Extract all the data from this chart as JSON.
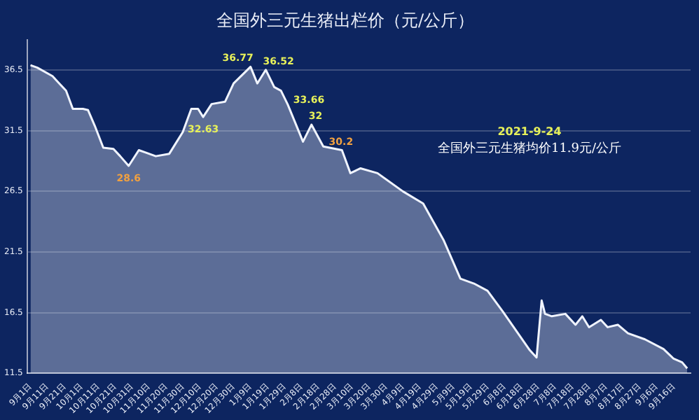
{
  "chart_data": {
    "type": "area",
    "title": "全国外三元生猪出栏价（元/公斤）",
    "x": [
      "2020-09-01",
      "2020-09-05",
      "2020-09-14",
      "2020-09-18",
      "2020-09-22",
      "2020-09-26",
      "2020-10-02",
      "2020-10-05",
      "2020-10-09",
      "2020-10-14",
      "2020-10-20",
      "2020-10-24",
      "2020-10-29",
      "2020-11-04",
      "2020-11-08",
      "2020-11-14",
      "2020-11-22",
      "2020-11-30",
      "2020-12-05",
      "2020-12-09",
      "2020-12-12",
      "2020-12-17",
      "2020-12-25",
      "2020-12-30",
      "2021-01-09",
      "2021-01-13",
      "2021-01-18",
      "2021-01-23",
      "2021-01-27",
      "2021-01-31",
      "2021-02-09",
      "2021-02-14",
      "2021-02-21",
      "2021-03-04",
      "2021-03-09",
      "2021-03-15",
      "2021-03-25",
      "2021-04-09",
      "2021-04-21",
      "2021-05-03",
      "2021-05-13",
      "2021-05-21",
      "2021-05-29",
      "2021-06-07",
      "2021-06-15",
      "2021-06-23",
      "2021-06-27",
      "2021-06-30",
      "2021-07-02",
      "2021-07-06",
      "2021-07-14",
      "2021-07-20",
      "2021-07-24",
      "2021-07-28",
      "2021-08-04",
      "2021-08-08",
      "2021-08-14",
      "2021-08-20",
      "2021-08-30",
      "2021-09-10",
      "2021-09-16",
      "2021-09-21",
      "2021-09-24"
    ],
    "series": [
      {
        "color": "#f0f4ff",
        "values": [
          36.9,
          36.7,
          36.0,
          35.4,
          34.8,
          33.3,
          33.3,
          33.2,
          31.9,
          30.1,
          30.0,
          29.4,
          28.6,
          29.9,
          29.7,
          29.4,
          29.6,
          31.4,
          33.3,
          33.3,
          32.63,
          33.7,
          33.9,
          35.4,
          36.77,
          35.4,
          36.52,
          35.1,
          34.8,
          33.66,
          30.6,
          32,
          30.2,
          29.9,
          28.0,
          28.4,
          28.0,
          26.5,
          25.5,
          22.5,
          19.3,
          18.9,
          18.3,
          16.6,
          15.0,
          13.4,
          12.8,
          17.5,
          16.4,
          16.2,
          16.4,
          15.5,
          16.2,
          15.3,
          15.9,
          15.3,
          15.5,
          14.8,
          14.3,
          13.5,
          12.7,
          12.4,
          11.9
        ],
        "value_labels": [
          null,
          null,
          null,
          null,
          null,
          null,
          null,
          null,
          null,
          null,
          null,
          null,
          "28.6",
          null,
          null,
          null,
          null,
          null,
          null,
          null,
          "32.63",
          null,
          null,
          null,
          "36.77",
          null,
          "36.52",
          null,
          null,
          "33.66",
          null,
          "32",
          "30.2",
          null,
          null,
          null,
          null,
          null,
          null,
          null,
          null,
          null,
          null,
          null,
          null,
          null,
          null,
          null,
          null,
          null,
          null,
          null,
          null,
          null,
          null,
          null,
          null,
          null,
          null,
          null,
          null,
          null,
          null
        ]
      }
    ],
    "xlim": [
      "2020-08-30",
      "2021-09-26"
    ],
    "xticks": [
      {
        "value": "2020-09-01",
        "label": "9月1日"
      },
      {
        "value": "2020-09-11",
        "label": "9月11日"
      },
      {
        "value": "2020-09-21",
        "label": "9月21日"
      },
      {
        "value": "2020-10-01",
        "label": "10月1日"
      },
      {
        "value": "2020-10-11",
        "label": "10月11日"
      },
      {
        "value": "2020-10-21",
        "label": "10月21日"
      },
      {
        "value": "2020-10-31",
        "label": "10月31日"
      },
      {
        "value": "2020-11-10",
        "label": "11月10日"
      },
      {
        "value": "2020-11-20",
        "label": "11月20日"
      },
      {
        "value": "2020-11-30",
        "label": "11月30日"
      },
      {
        "value": "2020-12-10",
        "label": "12月10日"
      },
      {
        "value": "2020-12-20",
        "label": "12月20日"
      },
      {
        "value": "2020-12-30",
        "label": "12月30日"
      },
      {
        "value": "2021-01-09",
        "label": "1月9日"
      },
      {
        "value": "2021-01-19",
        "label": "1月19日"
      },
      {
        "value": "2021-01-29",
        "label": "1月29日"
      },
      {
        "value": "2021-02-08",
        "label": "2月8日"
      },
      {
        "value": "2021-02-18",
        "label": "2月18日"
      },
      {
        "value": "2021-02-28",
        "label": "2月28日"
      },
      {
        "value": "2021-03-10",
        "label": "3月10日"
      },
      {
        "value": "2021-03-20",
        "label": "3月20日"
      },
      {
        "value": "2021-03-30",
        "label": "3月30日"
      },
      {
        "value": "2021-04-09",
        "label": "4月9日"
      },
      {
        "value": "2021-04-19",
        "label": "4月19日"
      },
      {
        "value": "2021-04-29",
        "label": "4月29日"
      },
      {
        "value": "2021-05-09",
        "label": "5月9日"
      },
      {
        "value": "2021-05-19",
        "label": "5月19日"
      },
      {
        "value": "2021-05-29",
        "label": "5月29日"
      },
      {
        "value": "2021-06-08",
        "label": "6月8日"
      },
      {
        "value": "2021-06-18",
        "label": "6月18日"
      },
      {
        "value": "2021-06-28",
        "label": "6月28日"
      },
      {
        "value": "2021-07-08",
        "label": "7月8日"
      },
      {
        "value": "2021-07-18",
        "label": "7月18日"
      },
      {
        "value": "2021-07-28",
        "label": "7月28日"
      },
      {
        "value": "2021-08-07",
        "label": "8月7日"
      },
      {
        "value": "2021-08-17",
        "label": "8月17日"
      },
      {
        "value": "2021-08-27",
        "label": "8月27日"
      },
      {
        "value": "2021-09-06",
        "label": "9月6日"
      },
      {
        "value": "2021-09-16",
        "label": "9月16日"
      }
    ],
    "ylim": [
      11.5,
      39
    ],
    "yticks": [
      11.5,
      16.5,
      21.5,
      26.5,
      31.5,
      36.5
    ],
    "grid": "y",
    "legend": false,
    "annotations": [
      "2021-9-24",
      "全国外三元生猪均价11.9元/公斤"
    ]
  }
}
